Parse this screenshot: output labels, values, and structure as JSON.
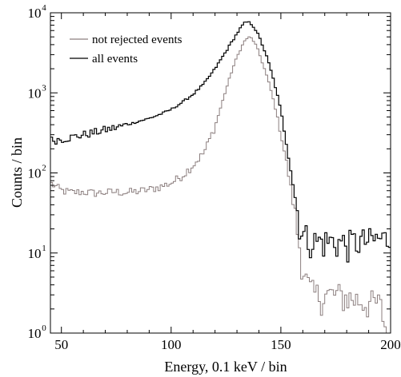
{
  "chart_data": {
    "type": "line",
    "title": "",
    "xlabel": "Energy, 0.1 keV / bin",
    "ylabel": "Counts / bin",
    "xlim": [
      45,
      200
    ],
    "ylim": [
      1,
      10000
    ],
    "yscale": "log",
    "x_ticks": [
      {
        "value": 50,
        "label": "50"
      },
      {
        "value": 100,
        "label": "100"
      },
      {
        "value": 150,
        "label": "150"
      },
      {
        "value": 200,
        "label": "200"
      }
    ],
    "y_ticks": [
      {
        "value": 1,
        "base": "10",
        "exp": "0"
      },
      {
        "value": 10,
        "base": "10",
        "exp": "1"
      },
      {
        "value": 100,
        "base": "10",
        "exp": "2"
      },
      {
        "value": 1000,
        "base": "10",
        "exp": "3"
      },
      {
        "value": 10000,
        "base": "10",
        "exp": "4"
      }
    ],
    "grid": false,
    "legend_position": "top-left",
    "plot_style": "step",
    "series": [
      {
        "name": "not rejected events",
        "color": "#8c7f7f",
        "points": [
          [
            45,
            75
          ],
          [
            50,
            60
          ],
          [
            55,
            57
          ],
          [
            60,
            58
          ],
          [
            65,
            56
          ],
          [
            70,
            57
          ],
          [
            75,
            58
          ],
          [
            80,
            57
          ],
          [
            85,
            59
          ],
          [
            90,
            62
          ],
          [
            95,
            67
          ],
          [
            100,
            75
          ],
          [
            105,
            92
          ],
          [
            110,
            125
          ],
          [
            115,
            180
          ],
          [
            120,
            380
          ],
          [
            125,
            1100
          ],
          [
            128,
            2000
          ],
          [
            130,
            2800
          ],
          [
            132,
            3700
          ],
          [
            134,
            4700
          ],
          [
            136,
            5000
          ],
          [
            138,
            4300
          ],
          [
            140,
            3200
          ],
          [
            142,
            2200
          ],
          [
            144,
            1500
          ],
          [
            146,
            950
          ],
          [
            148,
            560
          ],
          [
            150,
            320
          ],
          [
            152,
            160
          ],
          [
            154,
            80
          ],
          [
            156,
            35
          ],
          [
            158,
            15
          ],
          [
            160,
            7
          ],
          [
            162,
            4
          ],
          [
            165,
            3
          ],
          [
            170,
            3
          ],
          [
            175,
            3
          ],
          [
            180,
            2.8
          ],
          [
            185,
            2.6
          ],
          [
            190,
            2.4
          ],
          [
            195,
            2.3
          ],
          [
            197,
            1.5
          ],
          [
            198,
            1
          ],
          [
            200,
            1
          ]
        ]
      },
      {
        "name": "all events",
        "color": "#000000",
        "points": [
          [
            45,
            255
          ],
          [
            50,
            265
          ],
          [
            55,
            280
          ],
          [
            60,
            300
          ],
          [
            65,
            320
          ],
          [
            70,
            345
          ],
          [
            75,
            370
          ],
          [
            80,
            400
          ],
          [
            85,
            440
          ],
          [
            90,
            480
          ],
          [
            95,
            540
          ],
          [
            100,
            620
          ],
          [
            105,
            760
          ],
          [
            110,
            960
          ],
          [
            115,
            1300
          ],
          [
            120,
            2000
          ],
          [
            125,
            3300
          ],
          [
            128,
            4500
          ],
          [
            130,
            5500
          ],
          [
            132,
            6700
          ],
          [
            134,
            7700
          ],
          [
            136,
            7500
          ],
          [
            138,
            6500
          ],
          [
            140,
            5100
          ],
          [
            142,
            3700
          ],
          [
            144,
            2600
          ],
          [
            146,
            1700
          ],
          [
            148,
            1050
          ],
          [
            150,
            600
          ],
          [
            152,
            300
          ],
          [
            154,
            140
          ],
          [
            156,
            60
          ],
          [
            158,
            28
          ],
          [
            160,
            17
          ],
          [
            165,
            14
          ],
          [
            170,
            14
          ],
          [
            175,
            14
          ],
          [
            180,
            13
          ],
          [
            185,
            14
          ],
          [
            190,
            14
          ],
          [
            195,
            15
          ],
          [
            200,
            15
          ]
        ]
      }
    ]
  }
}
